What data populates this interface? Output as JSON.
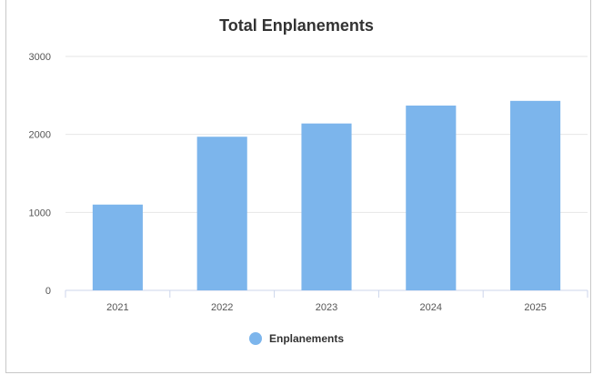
{
  "chart_data": {
    "type": "bar",
    "title": "Total Enplanements",
    "categories": [
      "2021",
      "2022",
      "2023",
      "2024",
      "2025"
    ],
    "series": [
      {
        "name": "Enplanements",
        "values": [
          1100,
          1970,
          2140,
          2370,
          2430
        ],
        "color": "#7cb5ec"
      }
    ],
    "ylim": [
      0,
      3000
    ],
    "yticks": [
      "0",
      "1000",
      "2000",
      "3000"
    ],
    "grid": true,
    "legend_position": "bottom-center"
  }
}
